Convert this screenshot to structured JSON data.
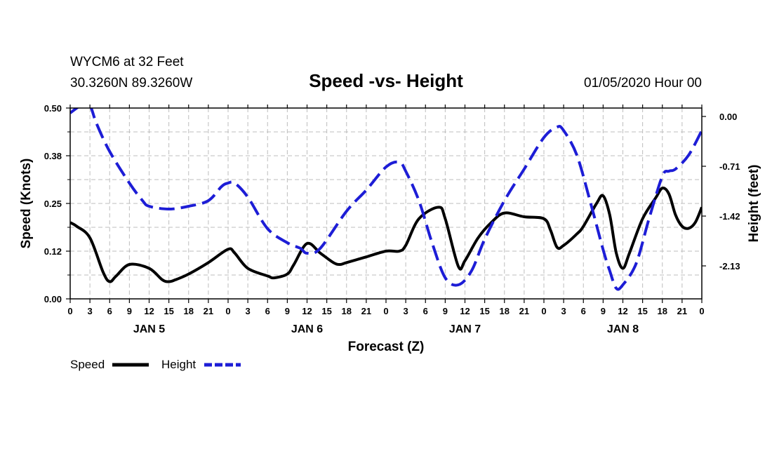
{
  "chart_data": {
    "type": "line",
    "title": "Speed -vs- Height",
    "station": "WYCM6 at 32 Feet",
    "location": "30.3260N 89.3260W",
    "run_time": "01/05/2020 Hour 00",
    "xlabel": "Forecast (Z)",
    "ylabel_left": "Speed (Knots)",
    "ylabel_right": "Height (feet)",
    "x_range_hours": [
      0,
      96
    ],
    "ylim_left": [
      0,
      0.5
    ],
    "ylim_right": [
      -2.6,
      0.12
    ],
    "left_ticks": [
      "0.00",
      "0.12",
      "0.25",
      "0.38",
      "0.50"
    ],
    "right_ticks": [
      {
        "label": "0.00",
        "value": 0.0
      },
      {
        "label": "-0.71",
        "value": -0.71
      },
      {
        "label": "-1.42",
        "value": -1.42
      },
      {
        "label": "-2.13",
        "value": -2.13
      }
    ],
    "x_tick_labels": [
      "0",
      "3",
      "6",
      "9",
      "12",
      "15",
      "18",
      "21",
      "0",
      "3",
      "6",
      "9",
      "12",
      "15",
      "18",
      "21",
      "0",
      "3",
      "6",
      "9",
      "12",
      "15",
      "18",
      "21",
      "0",
      "3",
      "6",
      "9",
      "12",
      "15",
      "18",
      "21",
      "0"
    ],
    "day_labels": [
      {
        "label": "JAN 5",
        "hour": 12
      },
      {
        "label": "JAN 6",
        "hour": 36
      },
      {
        "label": "JAN 7",
        "hour": 60
      },
      {
        "label": "JAN 8",
        "hour": 84
      }
    ],
    "grid": true,
    "legend_position": "bottom-left",
    "series": [
      {
        "name": "Speed",
        "axis": "left",
        "color": "#000000",
        "style": "solid",
        "points": [
          [
            0,
            0.2
          ],
          [
            1,
            0.19
          ],
          [
            3,
            0.16
          ],
          [
            5,
            0.07
          ],
          [
            6,
            0.045
          ],
          [
            7,
            0.06
          ],
          [
            9,
            0.09
          ],
          [
            12,
            0.08
          ],
          [
            14,
            0.05
          ],
          [
            15,
            0.045
          ],
          [
            16,
            0.05
          ],
          [
            18,
            0.065
          ],
          [
            21,
            0.095
          ],
          [
            24,
            0.13
          ],
          [
            25,
            0.12
          ],
          [
            27,
            0.08
          ],
          [
            30,
            0.06
          ],
          [
            31,
            0.055
          ],
          [
            33,
            0.065
          ],
          [
            34,
            0.09
          ],
          [
            36,
            0.145
          ],
          [
            38,
            0.12
          ],
          [
            40,
            0.095
          ],
          [
            41,
            0.09
          ],
          [
            42,
            0.095
          ],
          [
            45,
            0.11
          ],
          [
            48,
            0.125
          ],
          [
            50,
            0.125
          ],
          [
            51,
            0.14
          ],
          [
            53,
            0.21
          ],
          [
            56,
            0.24
          ],
          [
            57,
            0.21
          ],
          [
            59,
            0.085
          ],
          [
            60,
            0.1
          ],
          [
            62,
            0.16
          ],
          [
            64,
            0.2
          ],
          [
            66,
            0.225
          ],
          [
            69,
            0.215
          ],
          [
            72,
            0.21
          ],
          [
            73,
            0.18
          ],
          [
            74,
            0.135
          ],
          [
            75,
            0.14
          ],
          [
            77,
            0.17
          ],
          [
            78,
            0.19
          ],
          [
            80,
            0.25
          ],
          [
            81,
            0.27
          ],
          [
            82,
            0.22
          ],
          [
            83,
            0.12
          ],
          [
            84,
            0.08
          ],
          [
            85,
            0.12
          ],
          [
            87,
            0.21
          ],
          [
            89,
            0.265
          ],
          [
            90,
            0.29
          ],
          [
            91,
            0.275
          ],
          [
            92,
            0.22
          ],
          [
            93,
            0.19
          ],
          [
            94,
            0.185
          ],
          [
            95,
            0.2
          ],
          [
            96,
            0.24
          ]
        ]
      },
      {
        "name": "Height",
        "axis": "right",
        "color": "#1d1dd6",
        "style": "dashed",
        "points": [
          [
            0,
            0.05
          ],
          [
            1,
            0.12
          ],
          [
            2,
            0.18
          ],
          [
            3,
            0.16
          ],
          [
            4,
            -0.1
          ],
          [
            6,
            -0.5
          ],
          [
            9,
            -0.95
          ],
          [
            11,
            -1.2
          ],
          [
            12,
            -1.28
          ],
          [
            15,
            -1.32
          ],
          [
            18,
            -1.28
          ],
          [
            21,
            -1.2
          ],
          [
            23,
            -1.0
          ],
          [
            24,
            -0.95
          ],
          [
            25,
            -0.95
          ],
          [
            27,
            -1.15
          ],
          [
            30,
            -1.6
          ],
          [
            33,
            -1.8
          ],
          [
            35,
            -1.88
          ],
          [
            36,
            -1.95
          ],
          [
            38,
            -1.88
          ],
          [
            42,
            -1.35
          ],
          [
            45,
            -1.05
          ],
          [
            48,
            -0.72
          ],
          [
            50,
            -0.65
          ],
          [
            51,
            -0.78
          ],
          [
            53,
            -1.2
          ],
          [
            55,
            -1.8
          ],
          [
            57,
            -2.3
          ],
          [
            59,
            -2.4
          ],
          [
            61,
            -2.2
          ],
          [
            63,
            -1.75
          ],
          [
            66,
            -1.2
          ],
          [
            69,
            -0.75
          ],
          [
            72,
            -0.3
          ],
          [
            74,
            -0.15
          ],
          [
            75,
            -0.2
          ],
          [
            77,
            -0.55
          ],
          [
            79,
            -1.2
          ],
          [
            81,
            -1.9
          ],
          [
            82,
            -2.2
          ],
          [
            83,
            -2.45
          ],
          [
            84,
            -2.4
          ],
          [
            86,
            -2.1
          ],
          [
            88,
            -1.45
          ],
          [
            90,
            -0.85
          ],
          [
            91,
            -0.78
          ],
          [
            92,
            -0.75
          ],
          [
            94,
            -0.55
          ],
          [
            96,
            -0.2
          ]
        ]
      }
    ]
  }
}
